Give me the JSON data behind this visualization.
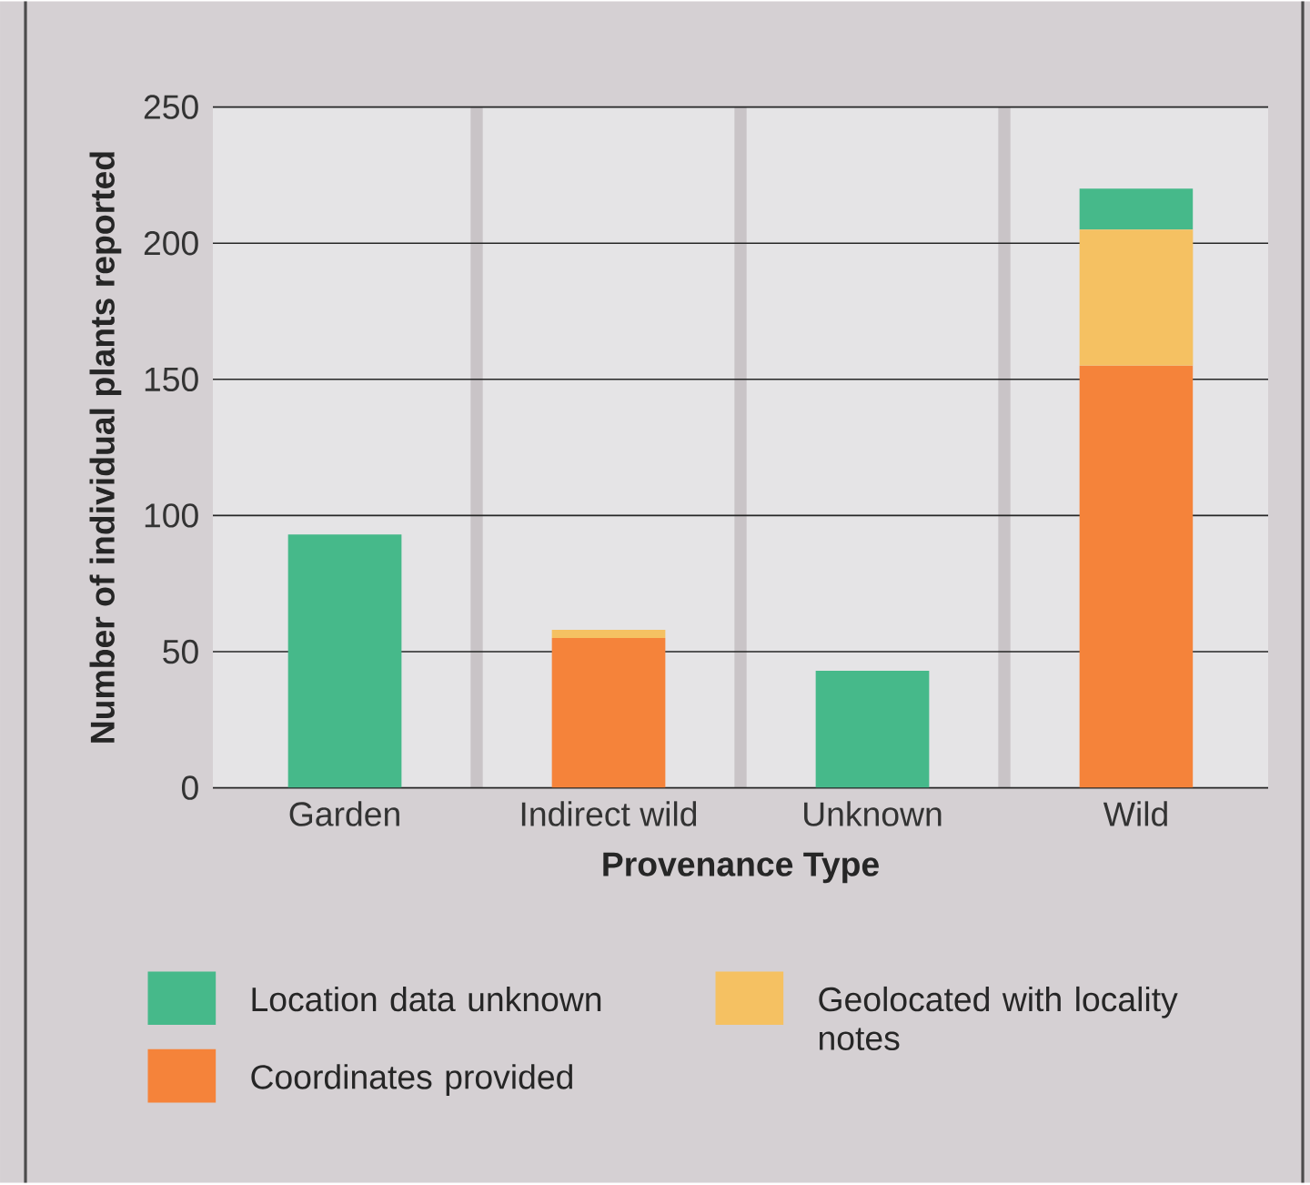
{
  "chart_data": {
    "type": "bar",
    "stacked": true,
    "xlabel": "Provenance Type",
    "ylabel": "Number of individual plants reported",
    "categories": [
      "Garden",
      "Indirect wild",
      "Unknown",
      "Wild"
    ],
    "series": [
      {
        "name": "Coordinates provided",
        "color": "#f5833a",
        "values": [
          0,
          55,
          0,
          155
        ]
      },
      {
        "name": "Geolocated with locality notes",
        "color": "#f5c162",
        "values": [
          0,
          3,
          0,
          50
        ]
      },
      {
        "name": "Location data unknown",
        "color": "#46b98a",
        "values": [
          93,
          0,
          43,
          15
        ]
      }
    ],
    "ylim": [
      0,
      250
    ],
    "yticks": [
      0,
      50,
      100,
      150,
      200,
      250
    ],
    "grid": "y",
    "legend": "bottom"
  }
}
